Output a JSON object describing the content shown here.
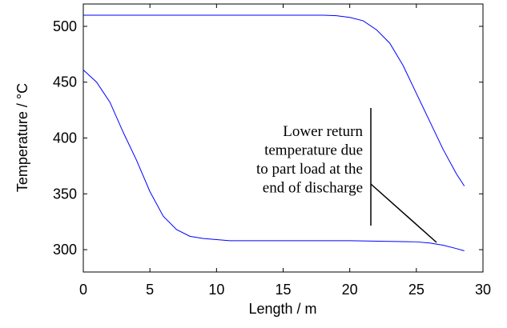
{
  "chart_data": {
    "type": "line",
    "xlabel": "Length / m",
    "ylabel": "Temperature / °C",
    "xlim": [
      0,
      30
    ],
    "ylim": [
      280,
      520
    ],
    "xticks": [
      0,
      5,
      10,
      15,
      20,
      25,
      30
    ],
    "yticks": [
      300,
      350,
      400,
      450,
      500
    ],
    "series": [
      {
        "color": "#0000ff",
        "x": [
          0,
          5,
          10,
          15,
          18,
          19,
          20,
          21,
          22,
          23,
          24,
          25,
          26,
          27,
          28,
          28.6
        ],
        "values": [
          510,
          510,
          510,
          510,
          510,
          509.5,
          508,
          505,
          497,
          485,
          465,
          440,
          415,
          390,
          368,
          357
        ]
      },
      {
        "color": "#0000ff",
        "x": [
          0,
          1,
          2,
          3,
          4,
          5,
          6,
          7,
          8,
          9,
          10,
          11,
          15,
          20,
          25,
          26,
          27,
          28,
          28.6
        ],
        "values": [
          461,
          450,
          432,
          405,
          380,
          352,
          330,
          318,
          312,
          310,
          309,
          308,
          308,
          308,
          307,
          306,
          304,
          301,
          299
        ]
      }
    ],
    "annotation": [
      "Lower return",
      "temperature due",
      "to part load at the",
      "end of discharge"
    ]
  }
}
